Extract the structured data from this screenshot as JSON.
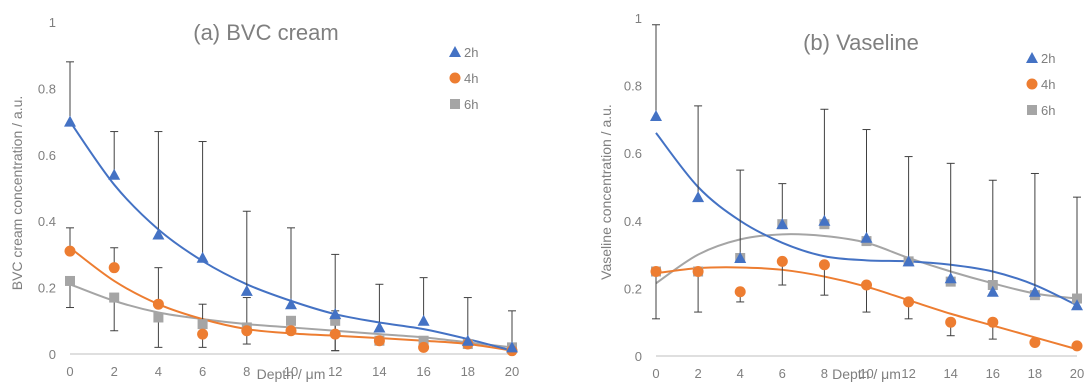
{
  "colors": {
    "2h": "#4472c4",
    "4h": "#ed7d31",
    "6h": "#a5a5a5",
    "axis": "#bfbfbf",
    "text": "#7f7f7f",
    "errorbar": "#404040"
  },
  "chart_data": [
    {
      "type": "scatter",
      "title": "(a) BVC cream",
      "xlabel": "Depth / μm",
      "ylabel": "BVC cream concentration / a.u.",
      "xlim": [
        0,
        20
      ],
      "ylim": [
        0,
        1
      ],
      "x_ticks": [
        "0",
        "2",
        "4",
        "6",
        "8",
        "10",
        "12",
        "14",
        "16",
        "18",
        "20"
      ],
      "y_ticks": [
        "0",
        "0.2",
        "0.4",
        "0.6",
        "0.8",
        "1"
      ],
      "grid": false,
      "legend_position": "top-right",
      "x": [
        0,
        2,
        4,
        6,
        8,
        10,
        12,
        14,
        16,
        18,
        20
      ],
      "series": [
        {
          "name": "2h",
          "marker": "triangle",
          "values": [
            0.7,
            0.54,
            0.36,
            0.29,
            0.19,
            0.15,
            0.12,
            0.08,
            0.1,
            0.04,
            0.02
          ],
          "err_plus": [
            0.18,
            0.13,
            0.31,
            0.35,
            0.24,
            0.23,
            0.18,
            0.13,
            0.13,
            0.13,
            0.11
          ],
          "err_minus": [
            0.0,
            0.0,
            0.0,
            0.0,
            0.0,
            0.0,
            0.0,
            0.0,
            0.0,
            0.0,
            0.0
          ],
          "trend": [
            0.7,
            0.51,
            0.375,
            0.28,
            0.21,
            0.16,
            0.12,
            0.095,
            0.075,
            0.045,
            0.01
          ]
        },
        {
          "name": "4h",
          "marker": "circle",
          "values": [
            0.31,
            0.26,
            0.15,
            0.06,
            0.07,
            0.07,
            0.06,
            0.04,
            0.02,
            0.03,
            0.01
          ],
          "err_plus": [
            0.07,
            0.06,
            0.11,
            0.09,
            0.1,
            0.0,
            0.07,
            0.0,
            0.0,
            0.0,
            0.0
          ],
          "err_minus": [
            0.0,
            0.0,
            0.0,
            0.04,
            0.04,
            0.0,
            0.05,
            0.0,
            0.0,
            0.0,
            0.0
          ],
          "trend": [
            0.32,
            0.22,
            0.15,
            0.105,
            0.075,
            0.062,
            0.055,
            0.048,
            0.04,
            0.03,
            0.01
          ]
        },
        {
          "name": "6h",
          "marker": "square",
          "values": [
            0.22,
            0.17,
            0.11,
            0.09,
            0.08,
            0.1,
            0.1,
            0.04,
            0.04,
            0.03,
            0.02
          ],
          "err_plus": [
            0.0,
            0.0,
            0.0,
            0.0,
            0.0,
            0.0,
            0.0,
            0.0,
            0.0,
            0.0,
            0.0
          ],
          "err_minus": [
            0.08,
            0.1,
            0.09,
            0.0,
            0.0,
            0.0,
            0.09,
            0.0,
            0.0,
            0.0,
            0.0
          ],
          "trend": [
            0.21,
            0.16,
            0.125,
            0.105,
            0.09,
            0.08,
            0.07,
            0.06,
            0.05,
            0.035,
            0.02
          ]
        }
      ]
    },
    {
      "type": "scatter",
      "title": "(b) Vaseline",
      "xlabel": "Depth / μm",
      "ylabel": "Vaseline concentration / a.u.",
      "xlim": [
        0,
        20
      ],
      "ylim": [
        0,
        1
      ],
      "x_ticks": [
        "0",
        "2",
        "4",
        "6",
        "8",
        "10",
        "12",
        "14",
        "16",
        "18",
        "20"
      ],
      "y_ticks": [
        "0",
        "0.2",
        "0.4",
        "0.6",
        "0.8",
        "1"
      ],
      "grid": false,
      "legend_position": "top-right",
      "x": [
        0,
        2,
        4,
        6,
        8,
        10,
        12,
        14,
        16,
        18,
        20
      ],
      "series": [
        {
          "name": "2h",
          "marker": "triangle",
          "values": [
            0.71,
            0.47,
            0.29,
            0.39,
            0.4,
            0.35,
            0.28,
            0.23,
            0.19,
            0.19,
            0.15
          ],
          "err_plus": [
            0.27,
            0.27,
            0.26,
            0.12,
            0.33,
            0.32,
            0.31,
            0.34,
            0.33,
            0.35,
            0.32
          ],
          "err_minus": [
            0.0,
            0.0,
            0.0,
            0.0,
            0.0,
            0.0,
            0.0,
            0.0,
            0.0,
            0.0,
            0.0
          ],
          "trend": [
            0.66,
            0.5,
            0.4,
            0.335,
            0.295,
            0.283,
            0.28,
            0.27,
            0.25,
            0.21,
            0.15
          ]
        },
        {
          "name": "4h",
          "marker": "circle",
          "values": [
            0.25,
            0.25,
            0.19,
            0.28,
            0.27,
            0.21,
            0.16,
            0.1,
            0.1,
            0.04,
            0.03
          ],
          "err_plus": [
            0.0,
            0.0,
            0.0,
            0.0,
            0.0,
            0.0,
            0.0,
            0.0,
            0.0,
            0.0,
            0.0
          ],
          "err_minus": [
            0.14,
            0.12,
            0.03,
            0.07,
            0.09,
            0.08,
            0.05,
            0.04,
            0.05,
            0.0,
            0.0
          ],
          "trend": [
            0.245,
            0.26,
            0.262,
            0.255,
            0.235,
            0.205,
            0.165,
            0.125,
            0.09,
            0.055,
            0.02
          ]
        },
        {
          "name": "6h",
          "marker": "square",
          "values": [
            0.25,
            0.25,
            0.29,
            0.39,
            0.39,
            0.34,
            0.28,
            0.22,
            0.21,
            0.18,
            0.17
          ],
          "err_plus": [
            0.0,
            0.0,
            0.0,
            0.0,
            0.0,
            0.0,
            0.0,
            0.0,
            0.0,
            0.0,
            0.0
          ],
          "err_minus": [
            0.0,
            0.0,
            0.0,
            0.0,
            0.0,
            0.0,
            0.0,
            0.0,
            0.0,
            0.0,
            0.0
          ],
          "trend": [
            0.215,
            0.3,
            0.345,
            0.36,
            0.355,
            0.335,
            0.29,
            0.25,
            0.215,
            0.185,
            0.17
          ]
        }
      ]
    }
  ]
}
